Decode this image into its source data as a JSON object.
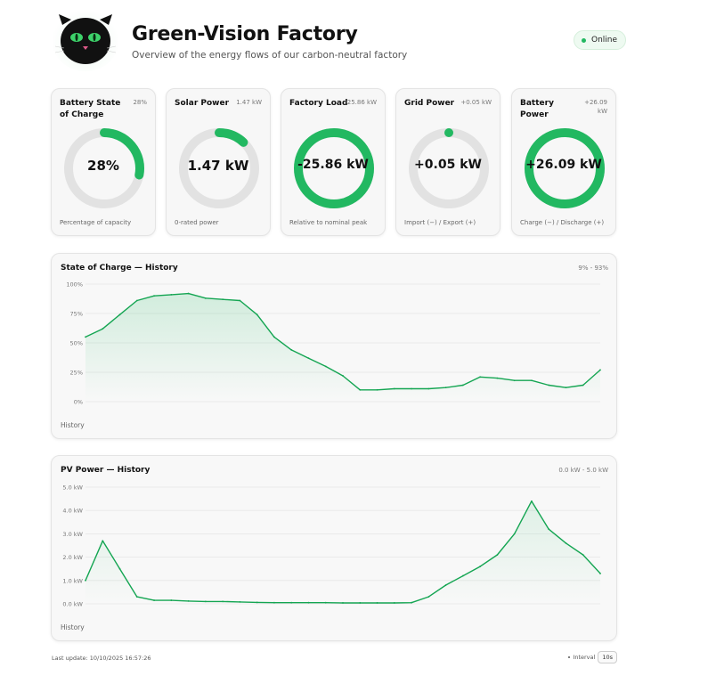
{
  "header": {
    "title": "Green-Vision Factory",
    "subtitle": "Overview of the energy flows of our carbon-neutral factory",
    "status": "Online"
  },
  "cards": [
    {
      "title": "Battery State of Charge",
      "value_label": "28%",
      "gauge_text": "28%",
      "footer": "Percentage of capacity",
      "fill": 0.28,
      "start": 0
    },
    {
      "title": "Solar Power",
      "value_label": "1.47 kW",
      "gauge_text": "1.47 kW",
      "footer": "0-rated power",
      "fill": 0.12,
      "start": 0
    },
    {
      "title": "Factory Load",
      "value_label": "-25.86 kW",
      "gauge_text": "-25.86 kW",
      "footer": "Relative to nominal peak",
      "fill": 1.0,
      "start": 0
    },
    {
      "title": "Grid Power",
      "value_label": "+0.05 kW",
      "gauge_text": "+0.05 kW",
      "footer": "Import (−) / Export (+)",
      "fill": 0.005,
      "start": 0
    },
    {
      "title": "Battery Power",
      "value_label": "+26.09 kW",
      "gauge_text": "+26.09 kW",
      "footer": "Charge (−) / Discharge (+)",
      "fill": 1.0,
      "start": 0
    }
  ],
  "colors": {
    "accent": "#22b861",
    "accent_dark": "#14a552",
    "track": "#e2e2e2"
  },
  "soc_chart": {
    "title": "State of Charge — History",
    "range": "9% - 93%",
    "footer": "History",
    "y_ticks": [
      "100%",
      "75%",
      "50%",
      "25%",
      "0%"
    ]
  },
  "pv_chart": {
    "title": "PV Power — History",
    "range": "0.0 kW - 5.0 kW",
    "footer": "History",
    "y_ticks": [
      "5.0 kW",
      "4.0 kW",
      "3.0 kW",
      "2.0 kW",
      "1.0 kW",
      "0.0 kW"
    ]
  },
  "chart_data": [
    {
      "type": "area",
      "title": "State of Charge — History",
      "ylim": [
        0,
        100
      ],
      "x": [
        0,
        1,
        2,
        3,
        4,
        5,
        6,
        7,
        8,
        9,
        10,
        11,
        12,
        13,
        14,
        15,
        16,
        17,
        18,
        19,
        20,
        21,
        22,
        23,
        24,
        25,
        26,
        27,
        28,
        29,
        30
      ],
      "values": [
        55,
        62,
        74,
        86,
        90,
        91,
        92,
        88,
        87,
        86,
        74,
        55,
        44,
        37,
        30,
        22,
        10,
        10,
        11,
        11,
        11,
        12,
        14,
        21,
        20,
        18,
        18,
        14,
        12,
        14,
        27
      ]
    },
    {
      "type": "line",
      "title": "PV Power — History",
      "ylim": [
        0,
        5
      ],
      "x": [
        0,
        1,
        2,
        3,
        4,
        5,
        6,
        7,
        8,
        9,
        10,
        11,
        12,
        13,
        14,
        15,
        16,
        17,
        18,
        19,
        20,
        21,
        22,
        23,
        24,
        25,
        26,
        27,
        28,
        29,
        30
      ],
      "values": [
        1.0,
        2.7,
        1.5,
        0.3,
        0.15,
        0.15,
        0.12,
        0.1,
        0.1,
        0.08,
        0.06,
        0.05,
        0.05,
        0.05,
        0.05,
        0.04,
        0.04,
        0.04,
        0.04,
        0.05,
        0.3,
        0.8,
        1.2,
        1.6,
        2.1,
        3.0,
        4.4,
        3.2,
        2.6,
        2.1,
        1.3
      ]
    }
  ],
  "footer": {
    "last_update": "Last update: 10/10/2025 16:57:26",
    "interval_label": "Interval",
    "interval_value": "10s"
  }
}
